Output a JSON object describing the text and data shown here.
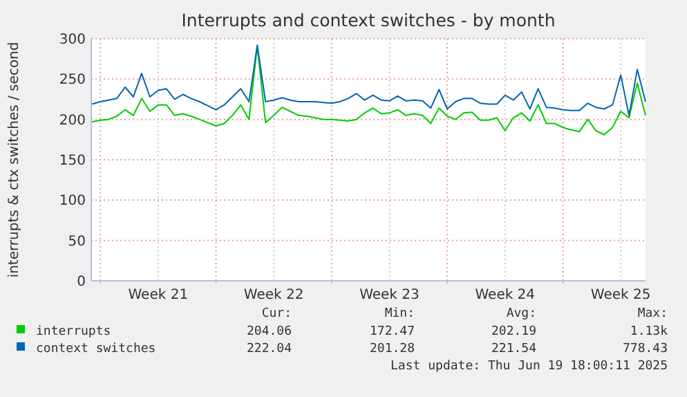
{
  "chart_data": {
    "type": "line",
    "title": "Interrupts and context switches - by month",
    "ylabel": "interrupts & ctx switches / second",
    "categories": [
      null,
      null,
      null,
      null,
      null,
      null,
      null,
      null,
      "Week 21",
      null,
      null,
      null,
      null,
      null,
      null,
      null,
      null,
      null,
      null,
      null,
      null,
      null,
      "Week 22",
      null,
      null,
      null,
      null,
      null,
      null,
      null,
      null,
      null,
      null,
      null,
      null,
      null,
      "Week 23",
      null,
      null,
      null,
      null,
      null,
      null,
      null,
      null,
      null,
      null,
      null,
      null,
      null,
      "Week 24",
      null,
      null,
      null,
      null,
      null,
      null,
      null,
      null,
      null,
      null,
      null,
      null,
      null,
      "Week 25",
      null,
      null,
      null
    ],
    "series": [
      {
        "name": "interrupts",
        "color": "#00cc00",
        "values": [
          197,
          199,
          200,
          204,
          212,
          205,
          226,
          210,
          218,
          218,
          205,
          207,
          204,
          200,
          196,
          192,
          195,
          205,
          218,
          200,
          291,
          196,
          205,
          215,
          210,
          205,
          204,
          202,
          200,
          200,
          199,
          198,
          200,
          208,
          214,
          207,
          208,
          212,
          205,
          207,
          205,
          195,
          214,
          204,
          200,
          208,
          209,
          199,
          199,
          202,
          186,
          202,
          208,
          198,
          218,
          195,
          195,
          190,
          187,
          185,
          200,
          186,
          181,
          190,
          210,
          202,
          245,
          205
        ]
      },
      {
        "name": "context switches",
        "color": "#0066b3",
        "values": [
          219,
          222,
          224,
          226,
          240,
          228,
          257,
          228,
          236,
          238,
          225,
          231,
          226,
          222,
          217,
          212,
          218,
          228,
          238,
          222,
          292,
          222,
          224,
          227,
          224,
          222,
          222,
          222,
          221,
          220,
          222,
          226,
          232,
          224,
          230,
          224,
          223,
          229,
          223,
          224,
          223,
          214,
          237,
          213,
          222,
          226,
          226,
          220,
          219,
          219,
          230,
          224,
          234,
          213,
          238,
          215,
          214,
          212,
          211,
          211,
          220,
          215,
          213,
          218,
          255,
          205,
          262,
          222
        ]
      }
    ],
    "ylim": [
      0,
      300
    ],
    "yticks": [
      0,
      50,
      100,
      150,
      200,
      250,
      300
    ],
    "grid": true,
    "legend": "bottom",
    "annotations": [
      "Cur:",
      "Min:",
      "Avg:",
      "Max:",
      "204.06",
      "172.47",
      "202.19",
      "1.13k",
      "222.04",
      "201.28",
      "221.54",
      "778.43",
      "Last update: Thu Jun 19 18:00:11 2025"
    ]
  }
}
